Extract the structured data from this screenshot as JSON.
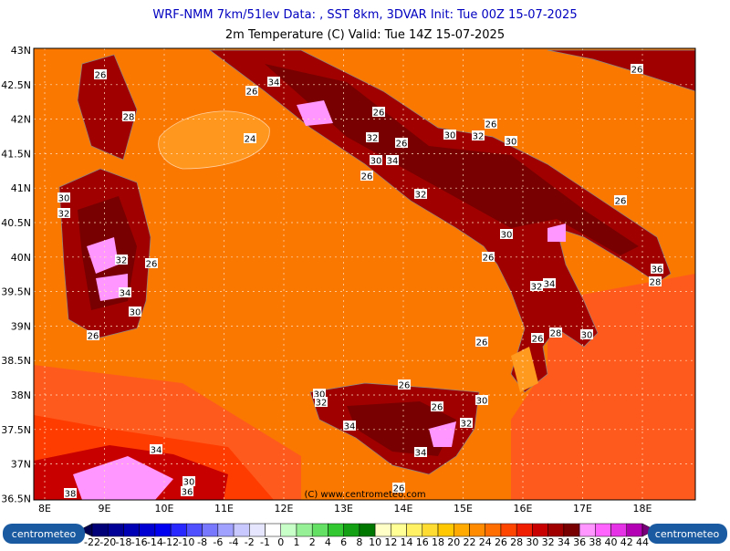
{
  "header": {
    "title": "WRF-NMM 7km/51lev  Data: , SST 8km, 3DVAR  Init: Tue 00Z 15-07-2025",
    "subtitle": "2m Temperature (C)  Valid: Tue 14Z 15-07-2025"
  },
  "map": {
    "lat_labels": [
      "43N",
      "42.5N",
      "42N",
      "41.5N",
      "41N",
      "40.5N",
      "40N",
      "39.5N",
      "39N",
      "38.5N",
      "38N",
      "37.5N",
      "37N",
      "36.5N"
    ],
    "lon_labels": [
      "8E",
      "9E",
      "10E",
      "11E",
      "12E",
      "13E",
      "14E",
      "15E",
      "16E",
      "17E",
      "18E"
    ],
    "contour_labels": [
      "26",
      "28",
      "24",
      "34",
      "26",
      "26",
      "32",
      "26",
      "30",
      "32",
      "26",
      "30",
      "30",
      "34",
      "26",
      "32",
      "26",
      "32",
      "30",
      "32",
      "26",
      "34",
      "30",
      "26",
      "30",
      "26",
      "34",
      "32",
      "36",
      "28",
      "28",
      "30",
      "26",
      "26",
      "26",
      "30",
      "32",
      "26",
      "30",
      "32",
      "34",
      "34",
      "34",
      "30",
      "36",
      "38",
      "26",
      "26"
    ],
    "copyright": "(C) www.centrometeo.com"
  },
  "colorbar": {
    "labels": [
      "-22",
      "-20",
      "-18",
      "-16",
      "-14",
      "-12",
      "-10",
      "-8",
      "-6",
      "-4",
      "-2",
      "-1",
      "0",
      "1",
      "2",
      "4",
      "6",
      "8",
      "10",
      "12",
      "14",
      "16",
      "18",
      "20",
      "22",
      "24",
      "26",
      "28",
      "30",
      "32",
      "34",
      "36",
      "38",
      "40",
      "42",
      "44"
    ],
    "colors": [
      "#000050",
      "#000078",
      "#000096",
      "#0000b4",
      "#0000d2",
      "#0000f0",
      "#2828ff",
      "#5050ff",
      "#7878ff",
      "#a0a0ff",
      "#c8c8ff",
      "#e6e6ff",
      "#ffffff",
      "#c8ffc8",
      "#96f096",
      "#64e064",
      "#32c832",
      "#14a014",
      "#007800",
      "#ffffc8",
      "#ffff96",
      "#fff064",
      "#ffdc32",
      "#ffc800",
      "#ffaa00",
      "#ff8c00",
      "#ff6e00",
      "#ff4600",
      "#f01e00",
      "#c80000",
      "#a00000",
      "#780000",
      "#ff96ff",
      "#ff64ff",
      "#e632e6",
      "#b400b4",
      "#780078"
    ],
    "logo_left": "centrometeo",
    "logo_right": "centrometeo"
  }
}
